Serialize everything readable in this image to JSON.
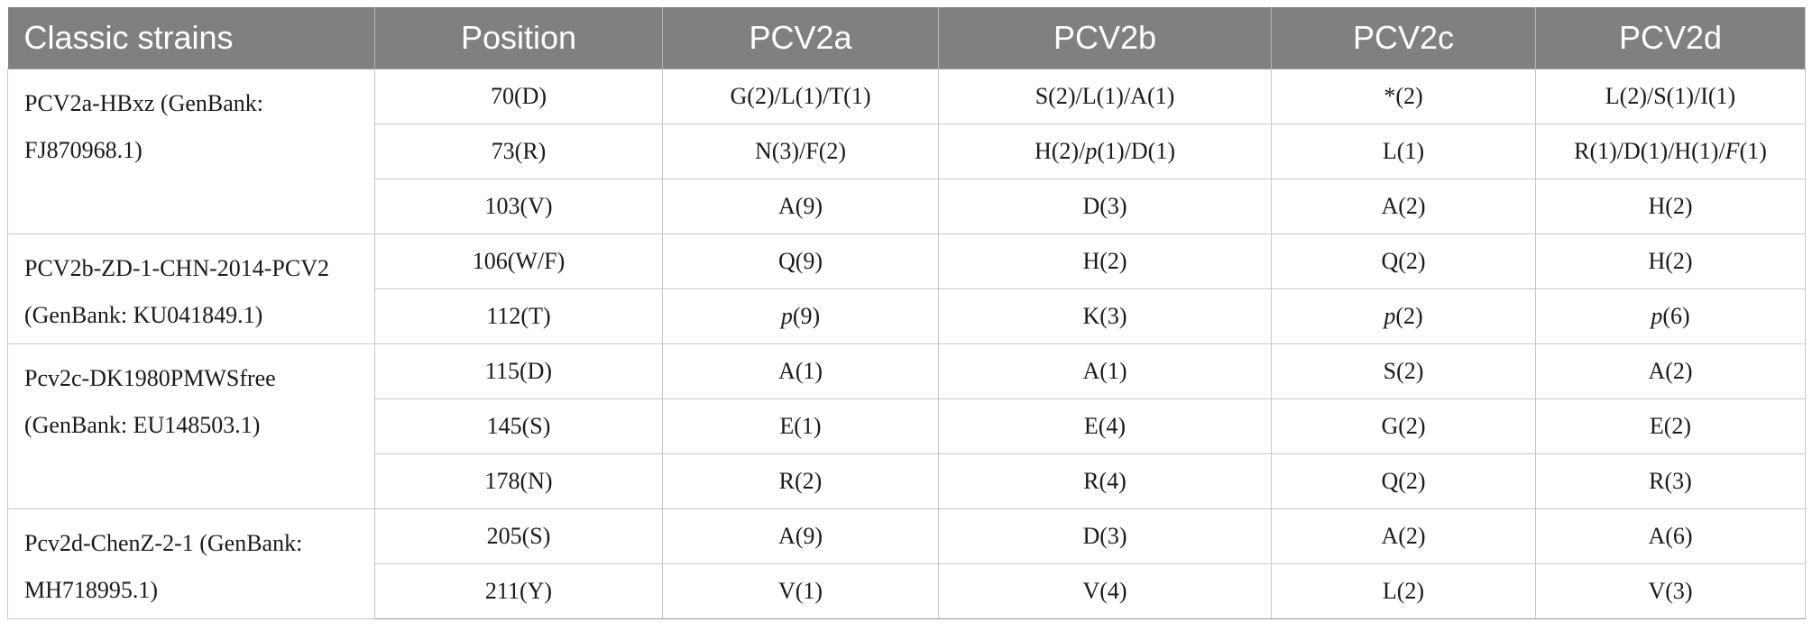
{
  "table": {
    "headers": [
      "Classic strains",
      "Position",
      "PCV2a",
      "PCV2b",
      "PCV2c",
      "PCV2d"
    ],
    "groups": [
      {
        "strain": "PCV2a-HBxz (GenBank: FJ870968.1)",
        "rows": [
          [
            "70(D)",
            "G(2)/L(1)/T(1)",
            "S(2)/L(1)/A(1)",
            "*(2)",
            "L(2)/S(1)/I(1)"
          ],
          [
            "73(R)",
            "N(3)/F(2)",
            "H(2)/p(1)/D(1)",
            "L(1)",
            "R(1)/D(1)/H(1)/F(1)"
          ],
          [
            "103(V)",
            "A(9)",
            "D(3)",
            "A(2)",
            "H(2)"
          ]
        ]
      },
      {
        "strain": "PCV2b-ZD-1-CHN-2014-PCV2 (GenBank: KU041849.1)",
        "rows": [
          [
            "106(W/F)",
            "Q(9)",
            "H(2)",
            "Q(2)",
            "H(2)"
          ],
          [
            "112(T)",
            "p(9)",
            "K(3)",
            "p(2)",
            "p(6)"
          ]
        ]
      },
      {
        "strain": "Pcv2c-DK1980PMWSfree (GenBank: EU148503.1)",
        "rows": [
          [
            "115(D)",
            "A(1)",
            "A(1)",
            "S(2)",
            "A(2)"
          ],
          [
            "145(S)",
            "E(1)",
            "E(4)",
            "G(2)",
            "E(2)"
          ],
          [
            "178(N)",
            "R(2)",
            "R(4)",
            "Q(2)",
            "R(3)"
          ]
        ]
      },
      {
        "strain": "Pcv2d-ChenZ-2-1 (GenBank: MH718995.1)",
        "rows": [
          [
            "205(S)",
            "A(9)",
            "D(3)",
            "A(2)",
            "A(6)"
          ],
          [
            "211(Y)",
            "V(1)",
            "V(4)",
            "L(2)",
            "V(3)"
          ]
        ]
      }
    ]
  }
}
